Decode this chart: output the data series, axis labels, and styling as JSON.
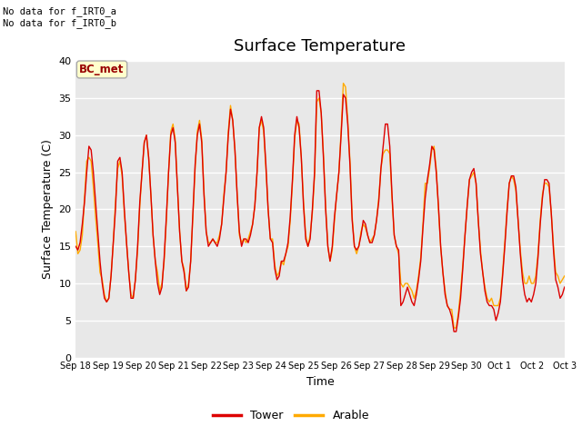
{
  "title": "Surface Temperature",
  "ylabel": "Surface Temperature (C)",
  "xlabel": "Time",
  "ylim": [
    0,
    40
  ],
  "bg_color": "#e8e8e8",
  "grid_color": "white",
  "annotation_text": "No data for f_IRT0_a\nNo data for f_IRT0_b",
  "bc_met_label": "BC_met",
  "legend_entries": [
    "Tower",
    "Arable"
  ],
  "legend_colors": [
    "#dd0000",
    "#ffaa00"
  ],
  "tower_color": "#dd0000",
  "arable_color": "#ffaa00",
  "x_tick_labels": [
    "Sep 18",
    "Sep 19",
    "Sep 20",
    "Sep 21",
    "Sep 22",
    "Sep 23",
    "Sep 24",
    "Sep 25",
    "Sep 26",
    "Sep 27",
    "Sep 28",
    "Sep 29",
    "Sep 30",
    "Oct 1",
    "Oct 2",
    "Oct 3"
  ],
  "tower_data": [
    15.0,
    14.5,
    15.5,
    18.0,
    21.0,
    25.0,
    28.5,
    28.0,
    25.0,
    21.0,
    17.0,
    13.0,
    10.0,
    8.0,
    7.5,
    8.0,
    11.0,
    15.5,
    20.0,
    26.5,
    27.0,
    25.0,
    20.0,
    15.5,
    11.5,
    8.0,
    8.0,
    10.5,
    15.0,
    21.0,
    25.0,
    29.0,
    30.0,
    27.0,
    22.0,
    16.5,
    13.0,
    10.0,
    8.5,
    9.5,
    13.5,
    19.0,
    25.0,
    30.0,
    31.0,
    29.0,
    23.0,
    17.0,
    13.0,
    11.5,
    9.0,
    9.5,
    13.0,
    19.5,
    26.0,
    30.0,
    31.5,
    29.0,
    22.0,
    17.0,
    15.0,
    15.5,
    16.0,
    15.5,
    15.0,
    16.0,
    18.0,
    21.5,
    25.0,
    30.0,
    33.5,
    32.0,
    28.0,
    22.0,
    17.0,
    15.0,
    16.0,
    16.0,
    15.5,
    16.5,
    18.0,
    20.5,
    25.0,
    31.0,
    32.5,
    31.0,
    26.0,
    20.0,
    16.0,
    15.5,
    12.0,
    10.5,
    11.0,
    13.0,
    13.0,
    14.0,
    15.5,
    19.0,
    24.0,
    30.0,
    32.5,
    31.0,
    27.0,
    20.5,
    16.0,
    15.0,
    16.0,
    20.0,
    25.0,
    36.0,
    36.0,
    33.0,
    27.0,
    20.0,
    15.0,
    13.0,
    15.0,
    19.0,
    22.0,
    25.0,
    30.0,
    35.5,
    35.0,
    31.5,
    26.0,
    18.5,
    15.0,
    14.5,
    15.0,
    16.5,
    18.5,
    18.0,
    16.5,
    15.5,
    15.5,
    16.5,
    18.5,
    21.0,
    25.5,
    28.5,
    31.5,
    31.5,
    28.5,
    22.0,
    16.5,
    15.0,
    14.5,
    7.0,
    7.5,
    8.5,
    9.5,
    8.5,
    7.5,
    7.0,
    8.5,
    10.5,
    13.0,
    17.5,
    21.5,
    24.0,
    26.0,
    28.5,
    28.0,
    25.0,
    20.5,
    15.0,
    11.5,
    8.5,
    7.0,
    6.5,
    5.5,
    3.5,
    3.5,
    5.5,
    8.0,
    12.0,
    16.5,
    20.5,
    24.0,
    25.0,
    25.5,
    23.5,
    18.5,
    14.0,
    11.5,
    9.0,
    7.5,
    7.0,
    7.0,
    6.5,
    5.0,
    6.0,
    7.5,
    11.0,
    15.0,
    19.5,
    23.5,
    24.5,
    24.5,
    23.0,
    18.5,
    14.0,
    10.5,
    8.5,
    7.5,
    8.0,
    7.5,
    8.5,
    10.0,
    13.5,
    18.0,
    21.5,
    24.0,
    24.0,
    23.5,
    19.5,
    14.5,
    10.5,
    9.5,
    8.0,
    8.5,
    9.5
  ],
  "arable_data": [
    17.0,
    14.0,
    14.5,
    16.5,
    21.5,
    26.5,
    27.0,
    26.5,
    23.0,
    19.0,
    15.5,
    11.5,
    10.5,
    8.5,
    7.5,
    8.0,
    11.0,
    15.5,
    21.0,
    25.5,
    26.5,
    24.5,
    19.5,
    15.5,
    11.5,
    8.5,
    8.0,
    10.5,
    14.5,
    20.5,
    25.0,
    29.0,
    30.0,
    27.0,
    22.0,
    16.5,
    13.0,
    11.5,
    9.0,
    10.0,
    13.0,
    18.5,
    25.0,
    30.5,
    31.5,
    29.5,
    23.0,
    17.0,
    13.0,
    12.0,
    9.0,
    10.0,
    13.0,
    19.0,
    25.5,
    30.5,
    32.0,
    29.5,
    22.5,
    17.0,
    15.5,
    15.5,
    16.0,
    15.5,
    15.5,
    16.5,
    18.0,
    22.0,
    25.0,
    30.5,
    34.0,
    32.0,
    28.0,
    22.0,
    16.5,
    15.5,
    16.0,
    15.5,
    16.0,
    17.0,
    18.0,
    20.5,
    25.0,
    31.0,
    32.0,
    30.5,
    25.5,
    20.0,
    16.0,
    16.0,
    12.5,
    11.0,
    11.5,
    13.0,
    12.5,
    14.0,
    15.0,
    18.5,
    23.5,
    29.5,
    32.0,
    31.5,
    27.0,
    21.0,
    16.5,
    15.0,
    16.5,
    19.5,
    24.5,
    34.5,
    35.0,
    33.0,
    27.5,
    20.5,
    15.0,
    13.0,
    14.5,
    18.5,
    22.0,
    25.0,
    30.5,
    37.0,
    36.5,
    32.0,
    26.5,
    19.0,
    15.0,
    14.0,
    15.0,
    17.0,
    18.0,
    17.5,
    16.5,
    15.5,
    16.0,
    16.5,
    18.5,
    21.5,
    25.5,
    27.5,
    28.0,
    28.0,
    27.5,
    21.5,
    16.5,
    15.0,
    14.0,
    10.0,
    9.5,
    10.0,
    10.0,
    9.5,
    9.0,
    8.0,
    9.0,
    11.0,
    13.5,
    18.0,
    23.5,
    23.5,
    25.5,
    28.0,
    28.5,
    25.5,
    20.0,
    15.0,
    11.5,
    9.0,
    7.0,
    6.5,
    6.5,
    4.0,
    4.0,
    6.0,
    9.0,
    12.5,
    16.5,
    20.5,
    24.0,
    24.5,
    25.0,
    23.5,
    18.5,
    14.5,
    11.5,
    9.5,
    8.0,
    7.5,
    8.0,
    7.0,
    7.0,
    7.0,
    8.0,
    11.5,
    15.5,
    20.0,
    23.5,
    24.5,
    24.0,
    22.5,
    18.5,
    14.5,
    11.5,
    10.0,
    10.0,
    11.0,
    10.0,
    10.0,
    11.0,
    14.0,
    18.5,
    22.0,
    23.5,
    23.5,
    23.0,
    19.5,
    15.0,
    11.5,
    11.0,
    10.0,
    10.5,
    11.0
  ]
}
